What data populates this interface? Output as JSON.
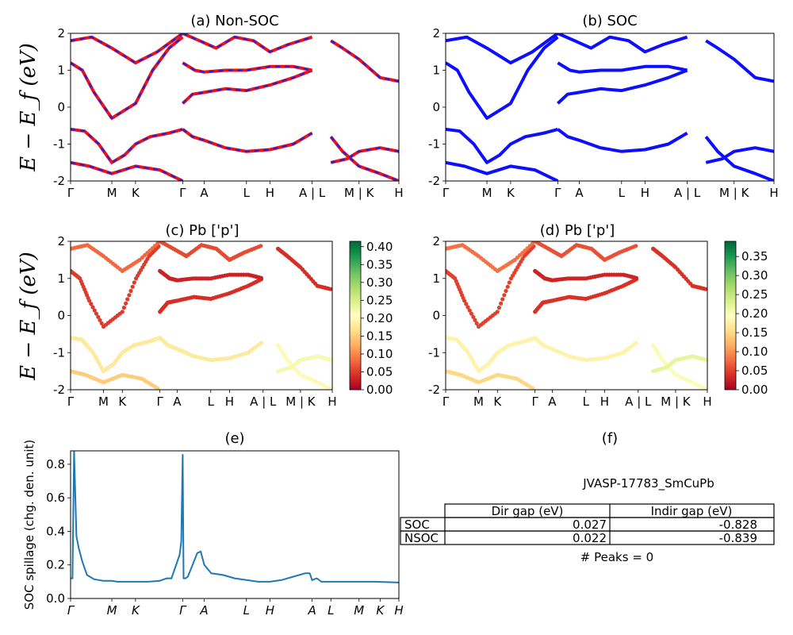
{
  "kpath_labels": [
    "Γ",
    "M",
    "K",
    "Γ",
    "A",
    "L",
    "H",
    "A | L",
    "M | K",
    "H"
  ],
  "kpath_labels_e": [
    "Γ",
    "M",
    "K",
    "Γ",
    "A",
    "L",
    "H",
    "A",
    "L",
    "M",
    "K",
    "H"
  ],
  "kpath_positions": [
    0,
    0.176,
    0.277,
    0.478,
    0.57,
    0.75,
    0.85,
    1.03,
    1.11,
    1.23,
    1.32,
    1.4
  ],
  "panels": {
    "a": {
      "title": "(a) Non-SOC",
      "ylabel": "E − E_f (eV)"
    },
    "b": {
      "title": "(b) SOC"
    },
    "c": {
      "title": "(c)  Pb ['p']",
      "ylabel": "E − E_f (eV)",
      "colorbar_ticks": [
        "0.00",
        "0.05",
        "0.10",
        "0.15",
        "0.20",
        "0.25",
        "0.30",
        "0.35",
        "0.40"
      ]
    },
    "d": {
      "title": "(d) Pb ['p']",
      "colorbar_ticks": [
        "0.00",
        "0.05",
        "0.10",
        "0.15",
        "0.20",
        "0.25",
        "0.30",
        "0.35"
      ]
    },
    "e": {
      "title": "(e)",
      "ylabel": "SOC spillage (chg. den. unit)"
    },
    "f": {
      "title": "(f)",
      "material": "JVASP-17783_SmCuPb",
      "table": {
        "headers": [
          "",
          "Dir gap (eV)",
          "Indir gap (eV)"
        ],
        "rows": [
          [
            "SOC",
            "0.027",
            "-0.828"
          ],
          [
            "NSOC",
            "0.022",
            "-0.839"
          ]
        ]
      },
      "peaks_text": "# Peaks = 0"
    }
  },
  "colors": {
    "nonsoc_line": "#e8131b",
    "nonsoc_dash": "#2020e0",
    "soc_line": "#0d0dff",
    "spillage_line": "#1f77b4"
  },
  "chart_data": [
    {
      "type": "line",
      "title": "(a) Non-SOC",
      "ylabel": "E − E_f (eV)",
      "ylim": [
        -2,
        2
      ],
      "x_ticks": [
        "Γ",
        "M",
        "K",
        "Γ",
        "A",
        "L",
        "H",
        "A | L",
        "M | K",
        "H"
      ],
      "y_ticks": [
        -2,
        -1,
        0,
        1,
        2
      ],
      "bands": [
        {
          "x": [
            0,
            0.05,
            0.1,
            0.176,
            0.277,
            0.35,
            0.42,
            0.478
          ],
          "y": [
            1.2,
            1.0,
            0.4,
            -0.3,
            0.1,
            1.0,
            1.6,
            1.9
          ]
        },
        {
          "x": [
            0,
            0.06,
            0.12,
            0.176,
            0.23,
            0.277,
            0.34,
            0.42,
            0.478
          ],
          "y": [
            -0.6,
            -0.65,
            -1.0,
            -1.5,
            -1.3,
            -1.0,
            -0.8,
            -0.7,
            -0.6
          ]
        },
        {
          "x": [
            0,
            0.08,
            0.176,
            0.277,
            0.38,
            0.478
          ],
          "y": [
            -1.5,
            -1.6,
            -1.8,
            -1.6,
            -1.7,
            -2.0
          ]
        },
        {
          "x": [
            0,
            0.09,
            0.176,
            0.277,
            0.37,
            0.478
          ],
          "y": [
            1.8,
            1.9,
            1.6,
            1.2,
            1.5,
            2.0
          ]
        },
        {
          "x": [
            0.478,
            0.52,
            0.57,
            0.66,
            0.75,
            0.85,
            0.95,
            1.03
          ],
          "y": [
            0.1,
            0.35,
            0.4,
            0.5,
            0.45,
            0.6,
            0.8,
            1.0
          ]
        },
        {
          "x": [
            0.478,
            0.52,
            0.57,
            0.66,
            0.75,
            0.85,
            0.95,
            1.03
          ],
          "y": [
            -0.6,
            -0.8,
            -0.9,
            -1.1,
            -1.2,
            -1.15,
            -1.0,
            -0.7
          ]
        },
        {
          "x": [
            0.478,
            0.53,
            0.57,
            0.66,
            0.75,
            0.85,
            0.95,
            1.03
          ],
          "y": [
            1.2,
            1.0,
            0.95,
            1.0,
            1.0,
            1.1,
            1.1,
            1.0
          ]
        },
        {
          "x": [
            0.478,
            0.55,
            0.62,
            0.7,
            0.78,
            0.85,
            0.93,
            1.03
          ],
          "y": [
            2.0,
            1.8,
            1.6,
            1.9,
            1.8,
            1.5,
            1.7,
            1.9
          ]
        },
        {
          "x": [
            1.11,
            1.16,
            1.23,
            1.32,
            1.4
          ],
          "y": [
            1.8,
            1.6,
            1.3,
            0.8,
            0.7
          ]
        },
        {
          "x": [
            1.11,
            1.16,
            1.23,
            1.32,
            1.4
          ],
          "y": [
            -0.8,
            -1.2,
            -1.6,
            -1.8,
            -2.0
          ]
        },
        {
          "x": [
            1.11,
            1.18,
            1.23,
            1.32,
            1.4
          ],
          "y": [
            -1.5,
            -1.4,
            -1.2,
            -1.1,
            -1.2
          ]
        }
      ]
    },
    {
      "type": "line",
      "title": "(b) SOC",
      "ylim": [
        -2,
        2
      ],
      "x_ticks": [
        "Γ",
        "M",
        "K",
        "Γ",
        "A",
        "L",
        "H",
        "A | L",
        "M | K",
        "H"
      ],
      "y_ticks": [
        -2,
        -1,
        0,
        1,
        2
      ],
      "bands": [
        {
          "x": [
            0,
            0.05,
            0.1,
            0.176,
            0.277,
            0.35,
            0.42,
            0.478
          ],
          "y": [
            1.2,
            1.0,
            0.4,
            -0.3,
            0.1,
            1.0,
            1.6,
            1.9
          ]
        },
        {
          "x": [
            0,
            0.06,
            0.12,
            0.176,
            0.23,
            0.277,
            0.34,
            0.42,
            0.478
          ],
          "y": [
            -0.6,
            -0.65,
            -1.0,
            -1.5,
            -1.3,
            -1.0,
            -0.8,
            -0.7,
            -0.6
          ]
        },
        {
          "x": [
            0,
            0.08,
            0.176,
            0.277,
            0.38,
            0.478
          ],
          "y": [
            -1.5,
            -1.6,
            -1.8,
            -1.6,
            -1.7,
            -2.0
          ]
        },
        {
          "x": [
            0,
            0.09,
            0.176,
            0.277,
            0.37,
            0.478
          ],
          "y": [
            1.8,
            1.9,
            1.6,
            1.2,
            1.5,
            2.0
          ]
        },
        {
          "x": [
            0.478,
            0.52,
            0.57,
            0.66,
            0.75,
            0.85,
            0.95,
            1.03
          ],
          "y": [
            0.1,
            0.35,
            0.4,
            0.5,
            0.45,
            0.6,
            0.8,
            1.0
          ]
        },
        {
          "x": [
            0.478,
            0.52,
            0.57,
            0.66,
            0.75,
            0.85,
            0.95,
            1.03
          ],
          "y": [
            -0.6,
            -0.8,
            -0.9,
            -1.1,
            -1.2,
            -1.15,
            -1.0,
            -0.7
          ]
        },
        {
          "x": [
            0.478,
            0.53,
            0.57,
            0.66,
            0.75,
            0.85,
            0.95,
            1.03
          ],
          "y": [
            1.2,
            1.0,
            0.95,
            1.0,
            1.0,
            1.1,
            1.1,
            1.0
          ]
        },
        {
          "x": [
            0.478,
            0.55,
            0.62,
            0.7,
            0.78,
            0.85,
            0.93,
            1.03
          ],
          "y": [
            2.0,
            1.8,
            1.6,
            1.9,
            1.8,
            1.5,
            1.7,
            1.9
          ]
        },
        {
          "x": [
            1.11,
            1.16,
            1.23,
            1.32,
            1.4
          ],
          "y": [
            1.8,
            1.6,
            1.3,
            0.8,
            0.7
          ]
        },
        {
          "x": [
            1.11,
            1.16,
            1.23,
            1.32,
            1.4
          ],
          "y": [
            -0.8,
            -1.2,
            -1.6,
            -1.8,
            -2.0
          ]
        },
        {
          "x": [
            1.11,
            1.18,
            1.23,
            1.32,
            1.4
          ],
          "y": [
            -1.5,
            -1.4,
            -1.2,
            -1.1,
            -1.2
          ]
        }
      ]
    },
    {
      "type": "scatter",
      "title": "(c)  Pb ['p']",
      "ylabel": "E − E_f (eV)",
      "ylim": [
        -2,
        2
      ],
      "x_ticks": [
        "Γ",
        "M",
        "K",
        "Γ",
        "A",
        "L",
        "H",
        "A | L",
        "M | K",
        "H"
      ],
      "y_ticks": [
        -2,
        -1,
        0,
        1,
        2
      ],
      "colorbar_range": [
        0,
        0.41
      ],
      "bands": [
        {
          "x": [
            0,
            0.05,
            0.1,
            0.176,
            0.277,
            0.35,
            0.42,
            0.478
          ],
          "y": [
            1.2,
            1.0,
            0.4,
            -0.3,
            0.1,
            1.0,
            1.6,
            1.9
          ],
          "w": 0.05
        },
        {
          "x": [
            0,
            0.06,
            0.12,
            0.176,
            0.23,
            0.277,
            0.34,
            0.42,
            0.478
          ],
          "y": [
            -0.6,
            -0.65,
            -1.0,
            -1.5,
            -1.3,
            -1.0,
            -0.8,
            -0.7,
            -0.6
          ],
          "w": 0.18
        },
        {
          "x": [
            0,
            0.08,
            0.176,
            0.277,
            0.38,
            0.478
          ],
          "y": [
            -1.5,
            -1.6,
            -1.8,
            -1.6,
            -1.7,
            -2.0
          ],
          "w": 0.15
        },
        {
          "x": [
            0,
            0.09,
            0.176,
            0.277,
            0.37,
            0.478
          ],
          "y": [
            1.8,
            1.9,
            1.6,
            1.2,
            1.5,
            2.0
          ],
          "w": 0.08
        },
        {
          "x": [
            0.478,
            0.52,
            0.57,
            0.66,
            0.75,
            0.85,
            0.95,
            1.03
          ],
          "y": [
            0.1,
            0.35,
            0.4,
            0.5,
            0.45,
            0.6,
            0.8,
            1.0
          ],
          "w": 0.04
        },
        {
          "x": [
            0.478,
            0.52,
            0.57,
            0.66,
            0.75,
            0.85,
            0.95,
            1.03
          ],
          "y": [
            -0.6,
            -0.8,
            -0.9,
            -1.1,
            -1.2,
            -1.15,
            -1.0,
            -0.7
          ],
          "w": 0.18
        },
        {
          "x": [
            0.478,
            0.53,
            0.57,
            0.66,
            0.75,
            0.85,
            0.95,
            1.03
          ],
          "y": [
            1.2,
            1.0,
            0.95,
            1.0,
            1.0,
            1.1,
            1.1,
            1.0
          ],
          "w": 0.03
        },
        {
          "x": [
            0.478,
            0.55,
            0.62,
            0.7,
            0.78,
            0.85,
            0.93,
            1.03
          ],
          "y": [
            2.0,
            1.8,
            1.6,
            1.9,
            1.8,
            1.5,
            1.7,
            1.9
          ],
          "w": 0.06
        },
        {
          "x": [
            1.11,
            1.16,
            1.23,
            1.32,
            1.4
          ],
          "y": [
            1.8,
            1.6,
            1.3,
            0.8,
            0.7
          ],
          "w": 0.04
        },
        {
          "x": [
            1.11,
            1.16,
            1.23,
            1.32,
            1.4
          ],
          "y": [
            -0.8,
            -1.2,
            -1.6,
            -1.8,
            -2.0
          ],
          "w": 0.2
        },
        {
          "x": [
            1.11,
            1.18,
            1.23,
            1.32,
            1.4
          ],
          "y": [
            -1.5,
            -1.4,
            -1.2,
            -1.1,
            -1.2
          ],
          "w": 0.22
        }
      ]
    },
    {
      "type": "scatter",
      "title": "(d) Pb ['p']",
      "ylim": [
        -2,
        2
      ],
      "x_ticks": [
        "Γ",
        "M",
        "K",
        "Γ",
        "A",
        "L",
        "H",
        "A | L",
        "M | K",
        "H"
      ],
      "y_ticks": [
        -2,
        -1,
        0,
        1,
        2
      ],
      "colorbar_range": [
        0,
        0.39
      ],
      "bands": [
        {
          "x": [
            0,
            0.05,
            0.1,
            0.176,
            0.277,
            0.35,
            0.42,
            0.478
          ],
          "y": [
            1.2,
            1.0,
            0.4,
            -0.3,
            0.1,
            1.0,
            1.6,
            1.9
          ],
          "w": 0.05
        },
        {
          "x": [
            0,
            0.06,
            0.12,
            0.176,
            0.23,
            0.277,
            0.34,
            0.42,
            0.478
          ],
          "y": [
            -0.6,
            -0.65,
            -1.0,
            -1.5,
            -1.3,
            -1.0,
            -0.8,
            -0.7,
            -0.6
          ],
          "w": 0.18
        },
        {
          "x": [
            0,
            0.08,
            0.176,
            0.277,
            0.38,
            0.478
          ],
          "y": [
            -1.5,
            -1.6,
            -1.8,
            -1.6,
            -1.7,
            -2.0
          ],
          "w": 0.15
        },
        {
          "x": [
            0,
            0.09,
            0.176,
            0.277,
            0.37,
            0.478
          ],
          "y": [
            1.8,
            1.9,
            1.6,
            1.2,
            1.5,
            2.0
          ],
          "w": 0.08
        },
        {
          "x": [
            0.478,
            0.52,
            0.57,
            0.66,
            0.75,
            0.85,
            0.95,
            1.03
          ],
          "y": [
            0.1,
            0.35,
            0.4,
            0.5,
            0.45,
            0.6,
            0.8,
            1.0
          ],
          "w": 0.04
        },
        {
          "x": [
            0.478,
            0.52,
            0.57,
            0.66,
            0.75,
            0.85,
            0.95,
            1.03
          ],
          "y": [
            -0.6,
            -0.8,
            -0.9,
            -1.1,
            -1.2,
            -1.15,
            -1.0,
            -0.7
          ],
          "w": 0.18
        },
        {
          "x": [
            0.478,
            0.53,
            0.57,
            0.66,
            0.75,
            0.85,
            0.95,
            1.03
          ],
          "y": [
            1.2,
            1.0,
            0.95,
            1.0,
            1.0,
            1.1,
            1.1,
            1.0
          ],
          "w": 0.03
        },
        {
          "x": [
            0.478,
            0.55,
            0.62,
            0.7,
            0.78,
            0.85,
            0.93,
            1.03
          ],
          "y": [
            2.0,
            1.8,
            1.6,
            1.9,
            1.8,
            1.5,
            1.7,
            1.9
          ],
          "w": 0.06
        },
        {
          "x": [
            1.11,
            1.16,
            1.23,
            1.32,
            1.4
          ],
          "y": [
            1.8,
            1.6,
            1.3,
            0.8,
            0.7
          ],
          "w": 0.04
        },
        {
          "x": [
            1.11,
            1.16,
            1.23,
            1.32,
            1.4
          ],
          "y": [
            -0.8,
            -1.2,
            -1.6,
            -1.8,
            -2.0
          ],
          "w": 0.2
        },
        {
          "x": [
            1.11,
            1.18,
            1.23,
            1.32,
            1.4
          ],
          "y": [
            -1.5,
            -1.4,
            -1.2,
            -1.1,
            -1.2
          ],
          "w": 0.22
        }
      ]
    },
    {
      "type": "line",
      "title": "(e)",
      "ylabel": "SOC spillage (chg. den. unit)",
      "ylim": [
        0,
        0.88
      ],
      "y_ticks": [
        0.0,
        0.2,
        0.4,
        0.6,
        0.8
      ],
      "x_ticks": [
        "Γ",
        "M",
        "K",
        "Γ",
        "A",
        "L",
        "H",
        "A",
        "L",
        "M",
        "K",
        "H"
      ],
      "x": [
        0,
        0.008,
        0.015,
        0.025,
        0.035,
        0.05,
        0.07,
        0.1,
        0.14,
        0.176,
        0.2,
        0.25,
        0.277,
        0.33,
        0.38,
        0.41,
        0.43,
        0.45,
        0.465,
        0.472,
        0.478,
        0.482,
        0.49,
        0.5,
        0.52,
        0.54,
        0.555,
        0.57,
        0.6,
        0.65,
        0.7,
        0.75,
        0.8,
        0.85,
        0.9,
        0.95,
        1.0,
        1.02,
        1.03,
        1.05,
        1.07,
        1.11,
        1.2,
        1.3,
        1.4
      ],
      "y": [
        0.12,
        0.12,
        0.88,
        0.37,
        0.3,
        0.22,
        0.14,
        0.115,
        0.105,
        0.105,
        0.1,
        0.1,
        0.1,
        0.1,
        0.105,
        0.12,
        0.12,
        0.2,
        0.26,
        0.34,
        0.86,
        0.12,
        0.12,
        0.13,
        0.2,
        0.27,
        0.28,
        0.2,
        0.15,
        0.14,
        0.12,
        0.11,
        0.1,
        0.1,
        0.11,
        0.13,
        0.15,
        0.15,
        0.11,
        0.12,
        0.1,
        0.1,
        0.1,
        0.1,
        0.095
      ]
    }
  ]
}
